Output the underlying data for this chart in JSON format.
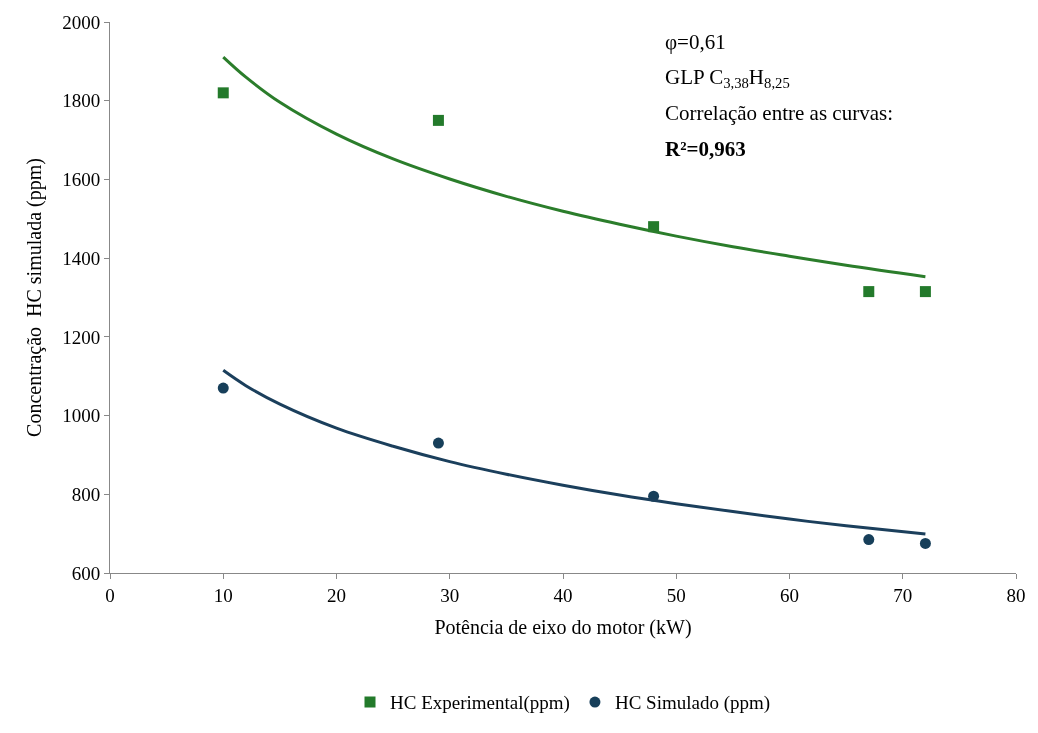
{
  "chart_data": {
    "type": "scatter",
    "xlabel": "Potência de eixo do motor (kW)",
    "ylabel": "Concentração  HC simulada (ppm)",
    "x": [
      10,
      29,
      48,
      67,
      72
    ],
    "series": [
      {
        "name": "HC Experimental(ppm)",
        "color": "#237a2b",
        "marker": "square",
        "values": [
          1820,
          1750,
          1480,
          1315,
          1315
        ]
      },
      {
        "name": "HC Simulado (ppm)",
        "color": "#173f5a",
        "marker": "circle",
        "values": [
          1070,
          930,
          795,
          685,
          675
        ]
      },
      {
        "type": "line",
        "color": "#2b7d2b",
        "x": [
          10,
          12,
          15,
          20,
          25,
          30,
          35,
          40,
          45,
          50,
          55,
          60,
          65,
          72
        ],
        "values": [
          1911,
          1860,
          1796,
          1715,
          1652,
          1601,
          1557,
          1519,
          1486,
          1456,
          1429,
          1405,
          1382,
          1353
        ]
      },
      {
        "type": "line",
        "color": "#1b3f5c",
        "x": [
          10,
          12,
          15,
          20,
          25,
          30,
          35,
          40,
          45,
          50,
          55,
          60,
          65,
          72
        ],
        "values": [
          1115,
          1076,
          1029,
          968,
          922,
          883,
          851,
          823,
          798,
          776,
          756,
          737,
          720,
          699
        ]
      }
    ],
    "xlim": [
      0,
      80
    ],
    "xticks": [
      0,
      10,
      20,
      30,
      40,
      50,
      60,
      70,
      80
    ],
    "ylim": [
      600,
      2000
    ],
    "yticks": [
      600,
      800,
      1000,
      1200,
      1400,
      1600,
      1800,
      2000
    ],
    "legend": "bottom",
    "annotations": [
      "φ=0,61",
      "GLP C$_{3,38}$H$_{8,25}$",
      "Correlação entre as curvas:",
      "R²=0,963"
    ]
  }
}
